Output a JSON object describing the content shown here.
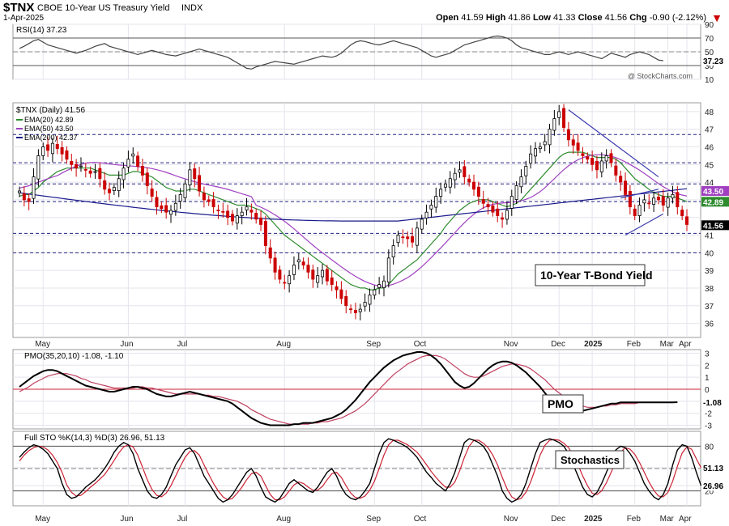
{
  "header": {
    "symbol": "$TNX",
    "name": "CBOE 10-Year US Treasury Yield",
    "exchange": "INDX",
    "date": "1-Apr-2025",
    "open_label": "Open",
    "open": "41.59",
    "high_label": "High",
    "high": "41.86",
    "low_label": "Low",
    "low": "41.33",
    "close_label": "Close",
    "close": "41.56",
    "chg_label": "Chg",
    "chg": "-0.90 (-2.12%)",
    "watermark": "@ StockCharts.com"
  },
  "colors": {
    "up": "#000000",
    "down": "#cc0000",
    "ema20": "#2e8b2e",
    "ema50": "#a040c0",
    "ema200": "#1a1a8c",
    "pmo": "#000000",
    "pmo_signal": "#c04060",
    "trendline": "#3a3ab0",
    "grid": "#e4e4ec",
    "level_line": "#202080"
  },
  "x_axis_labels": [
    "May",
    "Jun",
    "Jul",
    "Aug",
    "Sep",
    "Oct",
    "Nov",
    "Dec",
    "2025",
    "Feb",
    "Mar",
    "Apr"
  ],
  "chart_data": [
    {
      "type": "line",
      "panel": "rsi",
      "legend": "RSI(14) 37.23",
      "y_ticks": [
        90,
        70,
        50,
        30,
        10
      ],
      "ylim": [
        10,
        90
      ],
      "reference_lines": [
        70,
        30
      ],
      "last_value": "37.23",
      "series": [
        {
          "name": "RSI(14)",
          "values": [
            55,
            58,
            62,
            66,
            68,
            64,
            60,
            58,
            56,
            54,
            52,
            50,
            48,
            50,
            52,
            55,
            58,
            60,
            62,
            58,
            56,
            54,
            52,
            50,
            48,
            46,
            48,
            50,
            52,
            50,
            48,
            46,
            45,
            44,
            46,
            48,
            50,
            52,
            54,
            52,
            50,
            48,
            46,
            44,
            42,
            38,
            34,
            30,
            26,
            25,
            28,
            30,
            32,
            34,
            36,
            35,
            34,
            33,
            32,
            34,
            36,
            38,
            40,
            42,
            44,
            43,
            42,
            44,
            48,
            54,
            60,
            64,
            66,
            65,
            63,
            61,
            60,
            62,
            64,
            66,
            64,
            62,
            60,
            58,
            56,
            52,
            48,
            44,
            42,
            44,
            46,
            48,
            52,
            56,
            60,
            62,
            64,
            66,
            68,
            70,
            72,
            73,
            72,
            70,
            66,
            60,
            56,
            54,
            52,
            50,
            48,
            46,
            46,
            48,
            50,
            48,
            46,
            48,
            50,
            48,
            46,
            44,
            42,
            40,
            44,
            48,
            46,
            44,
            42,
            46,
            48,
            50,
            48,
            46,
            42,
            38,
            37
          ]
        }
      ]
    },
    {
      "type": "candlestick",
      "panel": "price",
      "legend_symbol": "$TNX (Daily) 41.56",
      "legend_ema20": "EMA(20) 42.89",
      "legend_ema50": "EMA(50) 43.50",
      "legend_ema200": "EMA(200) 42.37",
      "annotation": "10-Year T-Bond Yield",
      "y_ticks": [
        48,
        47,
        46,
        45,
        44,
        43,
        42,
        41,
        40,
        39,
        38,
        37,
        36
      ],
      "ylim": [
        35.2,
        48.5
      ],
      "horizontal_levels": [
        46.7,
        45.1,
        43.9,
        42.9,
        41.1,
        40.0
      ],
      "axis_tags": [
        {
          "value": 43.5,
          "label": "43.50",
          "color": "#a040c0"
        },
        {
          "value": 42.89,
          "label": "42.89",
          "color": "#2e8b2e"
        },
        {
          "value": 41.56,
          "label": "41.56",
          "color": "#000000"
        }
      ],
      "trendlines": [
        {
          "from": [
            116,
            48.1
          ],
          "to": [
            135,
            44.3
          ]
        },
        {
          "from": [
            128,
            41.0
          ],
          "to": [
            136,
            42.2
          ]
        },
        {
          "from": [
            127,
            43.1
          ],
          "to": [
            135,
            43.6
          ]
        }
      ],
      "close": [
        43.4,
        43.0,
        42.9,
        44.3,
        45.5,
        46.0,
        45.8,
        46.2,
        45.9,
        45.6,
        45.3,
        45.0,
        44.8,
        44.9,
        44.7,
        44.5,
        44.6,
        44.2,
        43.6,
        43.4,
        43.7,
        44.2,
        44.8,
        45.3,
        45.6,
        44.9,
        44.4,
        43.8,
        43.2,
        42.6,
        42.5,
        42.3,
        42.4,
        42.8,
        43.3,
        43.9,
        44.7,
        44.2,
        43.5,
        43.0,
        42.9,
        42.6,
        42.4,
        42.3,
        42.0,
        41.8,
        42.1,
        42.3,
        42.6,
        42.3,
        41.9,
        41.6,
        40.4,
        39.7,
        38.9,
        38.5,
        38.3,
        38.7,
        39.3,
        39.6,
        39.3,
        38.9,
        38.5,
        38.7,
        39.0,
        38.4,
        38.2,
        37.9,
        37.4,
        37.0,
        36.8,
        36.6,
        36.8,
        37.2,
        37.6,
        37.9,
        38.2,
        38.4,
        39.7,
        40.4,
        41.0,
        40.9,
        40.8,
        40.6,
        41.4,
        41.9,
        42.3,
        42.7,
        43.2,
        43.6,
        43.9,
        44.2,
        44.5,
        44.7,
        44.3,
        44.0,
        43.6,
        43.2,
        42.8,
        42.6,
        42.3,
        42.1,
        41.9,
        42.4,
        43.2,
        43.8,
        44.3,
        44.9,
        45.6,
        45.9,
        46.0,
        46.3,
        47.0,
        47.6,
        48.0,
        47.1,
        46.4,
        46.1,
        45.8,
        45.5,
        45.3,
        45.0,
        44.7,
        45.2,
        45.5,
        45.1,
        44.4,
        44.0,
        43.3,
        42.6,
        42.1,
        42.7,
        43.0,
        42.8,
        43.1,
        43.0,
        42.7,
        43.1,
        43.3,
        42.6,
        42.1,
        41.6
      ],
      "ema20": [
        43.2,
        43.3,
        43.3,
        43.5,
        43.7,
        44.0,
        44.2,
        44.4,
        44.6,
        44.7,
        44.8,
        44.8,
        44.8,
        44.8,
        44.8,
        44.8,
        44.7,
        44.6,
        44.5,
        44.4,
        44.4,
        44.4,
        44.4,
        44.5,
        44.6,
        44.6,
        44.5,
        44.4,
        44.3,
        44.1,
        43.9,
        43.7,
        43.6,
        43.5,
        43.5,
        43.5,
        43.6,
        43.6,
        43.5,
        43.4,
        43.3,
        43.2,
        43.1,
        43.0,
        42.9,
        42.8,
        42.7,
        42.7,
        42.7,
        42.6,
        42.5,
        42.4,
        42.2,
        41.9,
        41.6,
        41.3,
        41.0,
        40.8,
        40.6,
        40.4,
        40.2,
        40.0,
        39.8,
        39.6,
        39.4,
        39.2,
        39.0,
        38.8,
        38.6,
        38.4,
        38.2,
        38.1,
        38.0,
        38.0,
        37.9,
        37.9,
        38.0,
        38.0,
        38.2,
        38.5,
        38.8,
        39.0,
        39.2,
        39.4,
        39.6,
        39.9,
        40.2,
        40.5,
        40.8,
        41.1,
        41.5,
        41.8,
        42.1,
        42.4,
        42.6,
        42.8,
        42.9,
        43.0,
        43.0,
        43.0,
        42.9,
        42.8,
        42.7,
        42.6,
        42.7,
        42.8,
        43.0,
        43.3,
        43.6,
        43.9,
        44.2,
        44.5,
        44.8,
        45.1,
        45.4,
        45.6,
        45.7,
        45.7,
        45.7,
        45.7,
        45.6,
        45.5,
        45.4,
        45.4,
        45.4,
        45.4,
        45.3,
        45.1,
        44.8,
        44.5,
        44.2,
        44.0,
        43.8,
        43.6,
        43.4,
        43.3,
        43.2,
        43.2,
        43.2,
        43.1,
        43.0,
        42.9
      ]
    },
    {
      "type": "line",
      "panel": "pmo",
      "legend": "PMO(35,20,10) -1.08, -1.10",
      "annotation": "PMO",
      "y_ticks": [
        3,
        2,
        1,
        0,
        -1,
        -2,
        -3
      ],
      "ylim": [
        -3.3,
        3.3
      ],
      "zero_line": 0,
      "axis_tags": [
        {
          "value": -1.08,
          "label": "-1.08"
        }
      ],
      "series": [
        {
          "name": "PMO",
          "values": [
            0.2,
            0.5,
            0.8,
            1.1,
            1.3,
            1.5,
            1.6,
            1.6,
            1.5,
            1.3,
            1.1,
            0.9,
            0.7,
            0.5,
            0.3,
            0.2,
            0.1,
            0.0,
            -0.1,
            -0.2,
            -0.2,
            -0.1,
            0.0,
            0.1,
            0.2,
            0.2,
            0.1,
            0.0,
            -0.2,
            -0.4,
            -0.5,
            -0.6,
            -0.6,
            -0.5,
            -0.4,
            -0.3,
            -0.2,
            -0.3,
            -0.4,
            -0.5,
            -0.6,
            -0.7,
            -0.8,
            -0.9,
            -1.0,
            -1.2,
            -1.5,
            -1.8,
            -2.1,
            -2.4,
            -2.6,
            -2.8,
            -2.9,
            -3.0,
            -3.0,
            -3.0,
            -3.0,
            -3.0,
            -2.9,
            -2.9,
            -2.8,
            -2.8,
            -2.8,
            -2.7,
            -2.6,
            -2.5,
            -2.4,
            -2.2,
            -2.0,
            -1.7,
            -1.3,
            -0.9,
            -0.4,
            0.1,
            0.6,
            1.0,
            1.4,
            1.8,
            2.1,
            2.4,
            2.6,
            2.8,
            2.9,
            3.0,
            3.1,
            3.1,
            3.0,
            2.8,
            2.5,
            2.1,
            1.6,
            1.1,
            0.6,
            0.3,
            0.1,
            0.2,
            0.5,
            0.9,
            1.3,
            1.7,
            2.0,
            2.2,
            2.3,
            2.3,
            2.2,
            2.0,
            1.7,
            1.4,
            1.0,
            0.6,
            0.2,
            -0.3,
            -0.8,
            -1.2,
            -1.5,
            -1.8,
            -1.9,
            -1.9,
            -1.9,
            -1.8,
            -1.7,
            -1.6,
            -1.5,
            -1.4,
            -1.3,
            -1.2,
            -1.2,
            -1.1,
            -1.1,
            -1.1,
            -1.1,
            -1.1,
            -1.1,
            -1.1,
            -1.1,
            -1.1,
            -1.1,
            -1.1,
            -1.1,
            -1.08
          ]
        },
        {
          "name": "Signal",
          "values": [
            -0.2,
            0.0,
            0.2,
            0.5,
            0.7,
            0.9,
            1.1,
            1.2,
            1.3,
            1.3,
            1.3,
            1.2,
            1.1,
            0.9,
            0.8,
            0.6,
            0.5,
            0.4,
            0.3,
            0.2,
            0.1,
            0.1,
            0.1,
            0.1,
            0.1,
            0.2,
            0.2,
            0.1,
            0.1,
            0.0,
            -0.1,
            -0.2,
            -0.3,
            -0.4,
            -0.4,
            -0.4,
            -0.4,
            -0.4,
            -0.4,
            -0.5,
            -0.5,
            -0.6,
            -0.6,
            -0.7,
            -0.8,
            -0.9,
            -1.0,
            -1.2,
            -1.4,
            -1.7,
            -1.9,
            -2.1,
            -2.3,
            -2.5,
            -2.6,
            -2.7,
            -2.8,
            -2.9,
            -2.9,
            -2.9,
            -2.9,
            -2.9,
            -2.8,
            -2.8,
            -2.7,
            -2.7,
            -2.6,
            -2.5,
            -2.4,
            -2.2,
            -2.0,
            -1.8,
            -1.5,
            -1.2,
            -0.8,
            -0.4,
            0.0,
            0.4,
            0.8,
            1.2,
            1.5,
            1.8,
            2.1,
            2.3,
            2.5,
            2.7,
            2.8,
            2.8,
            2.8,
            2.7,
            2.5,
            2.2,
            1.9,
            1.6,
            1.3,
            1.1,
            1.0,
            1.0,
            1.1,
            1.3,
            1.5,
            1.7,
            1.9,
            2.0,
            2.1,
            2.1,
            2.0,
            1.9,
            1.7,
            1.4,
            1.1,
            0.8,
            0.4,
            0.0,
            -0.3,
            -0.6,
            -0.9,
            -1.1,
            -1.3,
            -1.4,
            -1.5,
            -1.5,
            -1.5,
            -1.4,
            -1.4,
            -1.3,
            -1.3,
            -1.2,
            -1.2,
            -1.2,
            -1.2,
            -1.1,
            -1.1,
            -1.1,
            -1.1,
            -1.1,
            -1.1,
            -1.1,
            -1.1,
            -1.1
          ]
        }
      ]
    },
    {
      "type": "line",
      "panel": "stochastics",
      "legend": "Full STO %K(14,3) %D(3) 26.96, 51.13",
      "annotation": "Stochastics",
      "y_ticks": [
        80,
        51.13,
        26.96,
        20
      ],
      "ylim": [
        0,
        100
      ],
      "reference_lines": [
        80,
        50,
        20
      ],
      "axis_tags": [
        {
          "value": 51.13,
          "label": "51.13"
        },
        {
          "value": 26.96,
          "label": "26.96"
        }
      ],
      "series": [
        {
          "name": "%K",
          "values": [
            65,
            72,
            78,
            82,
            80,
            76,
            70,
            60,
            50,
            30,
            15,
            10,
            12,
            18,
            25,
            30,
            35,
            42,
            50,
            60,
            72,
            80,
            85,
            82,
            70,
            50,
            35,
            20,
            12,
            10,
            15,
            25,
            40,
            55,
            65,
            75,
            78,
            70,
            55,
            40,
            30,
            20,
            10,
            5,
            8,
            15,
            25,
            35,
            45,
            50,
            40,
            25,
            12,
            8,
            5,
            10,
            20,
            30,
            35,
            30,
            25,
            20,
            18,
            25,
            35,
            45,
            50,
            40,
            25,
            15,
            10,
            8,
            12,
            20,
            30,
            50,
            70,
            85,
            90,
            88,
            85,
            82,
            78,
            72,
            65,
            55,
            45,
            38,
            30,
            25,
            20,
            30,
            45,
            65,
            85,
            90,
            88,
            85,
            80,
            70,
            55,
            40,
            20,
            10,
            5,
            8,
            15,
            30,
            50,
            70,
            85,
            88,
            90,
            88,
            85,
            80,
            70,
            55,
            40,
            25,
            15,
            12,
            18,
            30,
            45,
            60,
            75,
            80,
            78,
            70,
            60,
            45,
            30,
            20,
            12,
            8,
            15,
            30,
            55,
            75,
            82,
            80,
            65,
            45,
            27
          ]
        },
        {
          "name": "%D",
          "values": [
            60,
            68,
            74,
            78,
            80,
            79,
            75,
            68,
            58,
            45,
            28,
            18,
            13,
            14,
            19,
            25,
            30,
            36,
            42,
            51,
            61,
            71,
            79,
            82,
            79,
            68,
            52,
            35,
            22,
            14,
            12,
            17,
            27,
            40,
            53,
            65,
            73,
            74,
            68,
            55,
            42,
            30,
            20,
            12,
            8,
            10,
            17,
            25,
            35,
            43,
            45,
            40,
            27,
            15,
            8,
            8,
            12,
            20,
            28,
            32,
            30,
            25,
            21,
            21,
            26,
            35,
            43,
            45,
            38,
            27,
            17,
            11,
            10,
            13,
            21,
            33,
            50,
            68,
            82,
            88,
            88,
            85,
            82,
            77,
            72,
            64,
            55,
            46,
            38,
            31,
            25,
            25,
            32,
            47,
            65,
            80,
            88,
            88,
            84,
            78,
            68,
            55,
            38,
            23,
            12,
            8,
            10,
            18,
            32,
            50,
            68,
            81,
            88,
            89,
            88,
            84,
            78,
            68,
            55,
            40,
            27,
            17,
            15,
            20,
            31,
            45,
            60,
            72,
            78,
            76,
            69,
            58,
            45,
            32,
            21,
            13,
            12,
            18,
            33,
            53,
            71,
            79,
            76,
            63,
            51
          ]
        }
      ]
    }
  ]
}
